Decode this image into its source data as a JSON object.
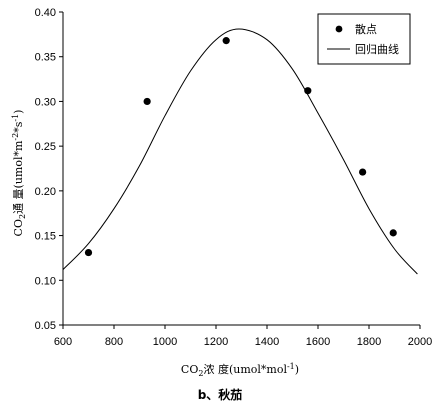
{
  "chart_data": {
    "type": "scatter",
    "xlabel": "CO2浓 度(umol*mol-1)",
    "ylabel": "CO2通 量(umol*m-2*s-1)",
    "xlim": [
      600,
      2000
    ],
    "ylim": [
      0.05,
      0.4
    ],
    "x_ticks": [
      "600",
      "800",
      "1000",
      "1200",
      "1400",
      "1600",
      "1800",
      "2000"
    ],
    "y_ticks": [
      "0.05",
      "0.10",
      "0.15",
      "0.20",
      "0.25",
      "0.30",
      "0.35",
      "0.40"
    ],
    "grid": false,
    "legend_position": "top-right",
    "series": [
      {
        "name": "散点",
        "kind": "scatter",
        "x": [
          700,
          930,
          1240,
          1560,
          1775,
          1895
        ],
        "y": [
          0.131,
          0.3,
          0.368,
          0.312,
          0.221,
          0.153
        ]
      },
      {
        "name": "回归曲线",
        "kind": "line",
        "x": [
          600,
          700,
          800,
          900,
          1000,
          1100,
          1200,
          1290,
          1400,
          1500,
          1600,
          1700,
          1800,
          1900,
          1990
        ],
        "y": [
          0.112,
          0.141,
          0.18,
          0.228,
          0.284,
          0.334,
          0.369,
          0.381,
          0.369,
          0.336,
          0.287,
          0.235,
          0.18,
          0.135,
          0.107
        ]
      }
    ]
  },
  "caption": "b、秋茄"
}
